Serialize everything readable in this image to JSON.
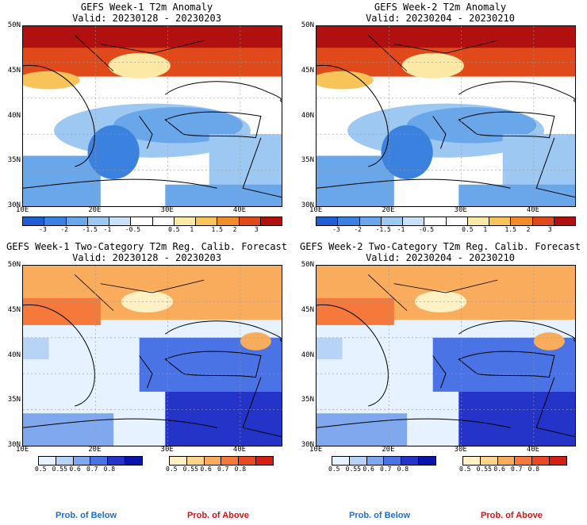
{
  "panels": [
    {
      "title": "GEFS Week-1 T2m Anomaly",
      "valid": "Valid: 20230128 - 20230203"
    },
    {
      "title": "GEFS Week-2 T2m Anomaly",
      "valid": "Valid: 20230204 - 20230210"
    },
    {
      "title": "GEFS Week-1 Two-Category T2m Reg. Calib. Forecast",
      "valid": "Valid: 20230128 - 20230203"
    },
    {
      "title": "GEFS Week-2 Two-Category T2m Reg. Calib. Forecast",
      "valid": "Valid: 20230204 - 20230210"
    }
  ],
  "lat_labels": [
    "50N",
    "45N",
    "40N",
    "35N",
    "30N"
  ],
  "lon_labels": [
    "10E",
    "20E",
    "30E",
    "40E"
  ],
  "anomaly_colorbar": {
    "colors": [
      "#1f5fd6",
      "#3b82e0",
      "#6aa6ea",
      "#9cc8f2",
      "#c8e2f8",
      "#ffffff",
      "#ffffff",
      "#fde9a6",
      "#f8c45a",
      "#f08c2a",
      "#e04a1a",
      "#b01010"
    ],
    "ticks": [
      "-3",
      "-2",
      "-1.5",
      "-1",
      "-0.5",
      "0.5",
      "1",
      "1.5",
      "2",
      "3"
    ]
  },
  "below_colorbar": {
    "colors": [
      "#e6f2ff",
      "#b7d4f7",
      "#7fa8ef",
      "#4a73e6",
      "#2433c8",
      "#0a14a8"
    ],
    "ticks": [
      "0.5",
      "0.55",
      "0.6",
      "0.7",
      "0.8"
    ]
  },
  "above_colorbar": {
    "colors": [
      "#fff1c4",
      "#fdd68c",
      "#f9ad5c",
      "#f4793a",
      "#ea4a22",
      "#d42010"
    ],
    "ticks": [
      "0.5",
      "0.55",
      "0.6",
      "0.7",
      "0.8"
    ]
  },
  "legend": {
    "below": "Prob. of Below",
    "above": "Prob. of Above"
  },
  "colors": {
    "below_text": "#1a6fd8",
    "above_text": "#e01010"
  }
}
